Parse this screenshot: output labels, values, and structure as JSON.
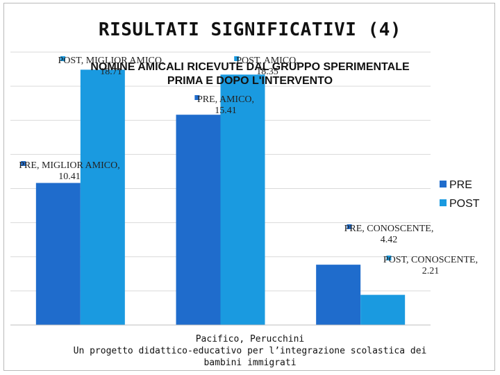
{
  "slide": {
    "title": "RISULTATI SIGNIFICATIVI (4)",
    "footer_line1": "Pacifico, Perucchini",
    "footer_line2": "Un progetto didattico-educativo per l’integrazione scolastica dei",
    "footer_line3": "bambini immigrati"
  },
  "chart_data": {
    "type": "bar",
    "title": "NOMINE AMICALI RICEVUTE DAL GRUPPO SPERIMENTALE",
    "subtitle": "PRIMA E DOPO L'INTERVENTO",
    "categories": [
      "MIGLIOR AMICO",
      "AMICO",
      "CONOSCENTE"
    ],
    "series": [
      {
        "name": "PRE",
        "values": [
          10.41,
          15.41,
          4.42
        ],
        "color": "#1f6ccc"
      },
      {
        "name": "POST",
        "values": [
          18.71,
          18.35,
          2.21
        ],
        "color": "#1a9ae0"
      }
    ],
    "data_labels": {
      "PRE": [
        "PRE, MIGLIOR AMICO, 10.41",
        "PRE, AMICO, 15.41",
        "PRE, CONOSCENTE, 4.42"
      ],
      "POST": [
        "POST, MIGLIOR AMICO, 18.71",
        "POST, AMICO, 18.35",
        "POST, CONOSCENTE, 2.21"
      ]
    },
    "ylim": [
      0,
      20
    ],
    "grid": true,
    "legend_position": "right"
  }
}
